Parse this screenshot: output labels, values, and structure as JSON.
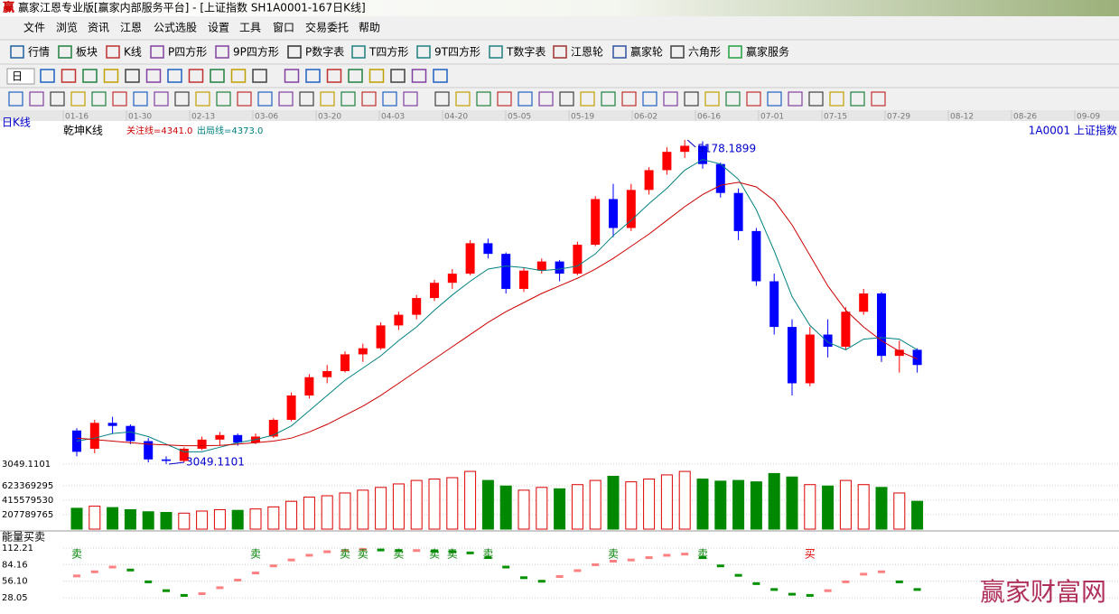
{
  "window": {
    "icon": "赢",
    "title": "赢家江恩专业版[赢家内部服务平台] - [上证指数  SH1A0001-167日K线]"
  },
  "menu": [
    "文件",
    "浏览",
    "资讯",
    "江恩",
    "公式选股",
    "设置",
    "工具",
    "窗口",
    "交易委托",
    "帮助"
  ],
  "toolbar": [
    "行情",
    "板块",
    "K线",
    "P四方形",
    "9P四方形",
    "P数字表",
    "T四方形",
    "9T四方形",
    "T数字表",
    "江恩轮",
    "赢家轮",
    "六角形",
    "赢家服务"
  ],
  "period_selector": "日",
  "watermark": "赢家财富网",
  "chart_data": [
    {
      "type": "candlestick",
      "period_label": "日K线",
      "indicator_label": "乾坤K线",
      "annotations": [
        "关注线=4341.0",
        "出局线=4373.0"
      ],
      "symbol": "1A0001  上证指数",
      "date_labels": [
        "01-16",
        "01-30",
        "02-13",
        "03-06",
        "03-20",
        "04-03",
        "04-20",
        "05-05",
        "05-19",
        "06-02",
        "06-16",
        "07-01",
        "07-15",
        "07-29",
        "08-12",
        "08-26",
        "09-09"
      ],
      "open": [
        3270,
        3150,
        3320,
        3300,
        3200,
        3080,
        3070,
        3150,
        3210,
        3240,
        3190,
        3230,
        3340,
        3500,
        3620,
        3660,
        3770,
        3810,
        3960,
        4030,
        4140,
        4240,
        4300,
        4500,
        4430,
        4200,
        4320,
        4380,
        4300,
        4490,
        4790,
        4600,
        4850,
        4980,
        5100,
        5140,
        5020,
        4830,
        4580,
        4250,
        3950,
        3580,
        3900,
        3820,
        4050,
        4170,
        3760,
        3800
      ],
      "high": [
        3285,
        3340,
        3360,
        3310,
        3220,
        3100,
        3160,
        3230,
        3260,
        3250,
        3250,
        3350,
        3520,
        3640,
        3700,
        3790,
        3840,
        3980,
        4050,
        4160,
        4260,
        4330,
        4520,
        4530,
        4440,
        4340,
        4400,
        4390,
        4510,
        4810,
        4890,
        4890,
        5000,
        5130,
        5178.1899,
        5170,
        5030,
        4860,
        4600,
        4300,
        4000,
        3950,
        4000,
        4080,
        4200,
        4180,
        3860,
        3810
      ],
      "low": [
        3100,
        3120,
        3250,
        3180,
        3060,
        3049.1101,
        3060,
        3140,
        3170,
        3170,
        3180,
        3220,
        3330,
        3480,
        3580,
        3650,
        3720,
        3800,
        3930,
        4000,
        4120,
        4200,
        4290,
        4400,
        4170,
        4180,
        4300,
        4250,
        4290,
        4480,
        4540,
        4580,
        4820,
        4950,
        5060,
        4990,
        4800,
        4520,
        4220,
        3900,
        3500,
        3560,
        3750,
        3800,
        4030,
        3720,
        3650,
        3650
      ],
      "close": [
        3130,
        3320,
        3300,
        3200,
        3080,
        3070,
        3150,
        3210,
        3240,
        3190,
        3230,
        3340,
        3500,
        3620,
        3660,
        3770,
        3810,
        3960,
        4030,
        4140,
        4240,
        4300,
        4500,
        4430,
        4200,
        4320,
        4380,
        4300,
        4490,
        4790,
        4600,
        4850,
        4980,
        5100,
        5140,
        5020,
        4830,
        4580,
        4250,
        3950,
        3580,
        3900,
        3820,
        4050,
        4170,
        3760,
        3800,
        3700
      ],
      "up_color": "#ff0000",
      "down_color": "#0000ff",
      "lines": [
        {
          "color": "#008080",
          "values": [
            3200,
            3220,
            3250,
            3260,
            3230,
            3180,
            3130,
            3130,
            3160,
            3190,
            3210,
            3240,
            3300,
            3400,
            3500,
            3600,
            3680,
            3760,
            3860,
            3950,
            4060,
            4160,
            4250,
            4330,
            4350,
            4340,
            4320,
            4330,
            4350,
            4430,
            4550,
            4650,
            4760,
            4860,
            4980,
            5050,
            5020,
            4920,
            4720,
            4450,
            4150,
            3960,
            3850,
            3800,
            3870,
            3880,
            3870,
            3800
          ]
        },
        {
          "color": "#cc0000",
          "values": [
            3220,
            3210,
            3200,
            3190,
            3180,
            3175,
            3170,
            3170,
            3172,
            3180,
            3190,
            3200,
            3220,
            3260,
            3310,
            3370,
            3430,
            3500,
            3580,
            3660,
            3740,
            3820,
            3900,
            3980,
            4050,
            4110,
            4170,
            4220,
            4270,
            4330,
            4400,
            4480,
            4560,
            4650,
            4740,
            4820,
            4880,
            4900,
            4870,
            4780,
            4620,
            4420,
            4220,
            4060,
            3950,
            3860,
            3790,
            3740
          ]
        }
      ],
      "ylim": [
        3031.3,
        5207.9
      ],
      "yticks": [
        3049.1101
      ]
    },
    {
      "type": "bar",
      "values": [
        300000000,
        330000000,
        310000000,
        280000000,
        250000000,
        240000000,
        230000000,
        260000000,
        280000000,
        270000000,
        290000000,
        320000000,
        400000000,
        460000000,
        480000000,
        520000000,
        560000000,
        600000000,
        650000000,
        700000000,
        720000000,
        740000000,
        830000000,
        700000000,
        620000000,
        560000000,
        600000000,
        580000000,
        640000000,
        700000000,
        760000000,
        680000000,
        720000000,
        780000000,
        830000000,
        720000000,
        690000000,
        700000000,
        680000000,
        800000000,
        750000000,
        640000000,
        620000000,
        700000000,
        640000000,
        600000000,
        520000000,
        400000000
      ],
      "up_color": "#dd0000",
      "down_color": "#008800",
      "ylim": [
        0,
        883000000
      ],
      "yticks": [
        207789765,
        415579530,
        623369295
      ]
    },
    {
      "type": "line",
      "title": "能量买卖",
      "values": [
        65,
        72,
        80,
        75,
        55,
        40,
        32,
        35,
        45,
        58,
        70,
        82,
        92,
        100,
        106,
        108,
        110,
        109,
        108,
        108,
        107,
        106,
        104,
        96,
        80,
        62,
        56,
        64,
        74,
        84,
        90,
        92,
        96,
        100,
        102,
        96,
        82,
        66,
        52,
        42,
        34,
        32,
        40,
        55,
        68,
        72,
        55,
        42
      ],
      "signals": [
        {
          "text": "卖",
          "color": "#008000"
        },
        null,
        null,
        null,
        null,
        null,
        null,
        null,
        null,
        null,
        {
          "text": "卖",
          "color": "#008000"
        },
        null,
        null,
        null,
        null,
        {
          "text": "卖",
          "color": "#008000"
        },
        {
          "text": "卖",
          "color": "#008000"
        },
        null,
        {
          "text": "卖",
          "color": "#008000"
        },
        null,
        {
          "text": "卖",
          "color": "#008000"
        },
        {
          "text": "卖",
          "color": "#008000"
        },
        null,
        {
          "text": "卖",
          "color": "#008000"
        },
        null,
        null,
        null,
        null,
        null,
        null,
        {
          "text": "卖",
          "color": "#008000"
        },
        null,
        null,
        null,
        null,
        {
          "text": "卖",
          "color": "#008000"
        },
        null,
        null,
        null,
        null,
        null,
        {
          "text": "买",
          "color": "#dd0000"
        },
        null,
        null,
        null,
        null,
        null,
        null
      ],
      "up_color": "#ff8080",
      "down_color": "#009000",
      "ylim": [
        6.6,
        118.3
      ],
      "yticks": [
        28.05,
        {
          "value": 56.1,
          "label": "56.10"
        },
        84.16,
        112.21
      ]
    }
  ]
}
